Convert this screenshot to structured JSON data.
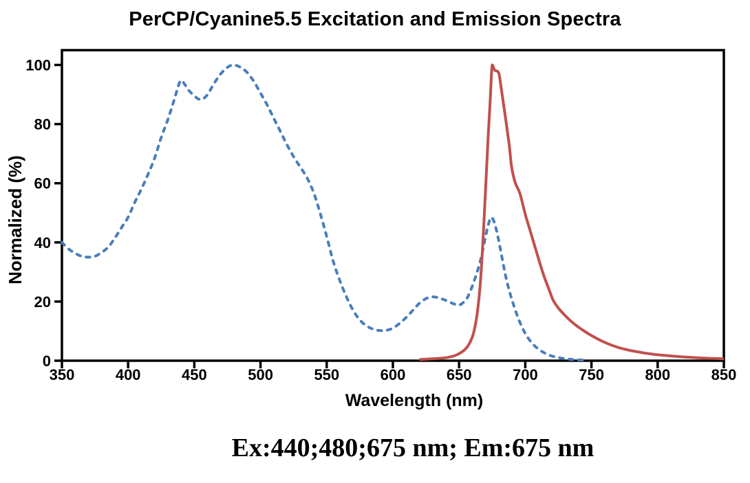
{
  "title": "PerCP/Cyanine5.5 Excitation and Emission Spectra",
  "caption": "Ex:440;480;675 nm; Em:675 nm",
  "chart_data": {
    "type": "line",
    "title": "PerCP/Cyanine5.5 Excitation and Emission Spectra",
    "xlabel": "Wavelength (nm)",
    "ylabel": "Normalized (%)",
    "xlim": [
      350,
      850
    ],
    "ylim": [
      0,
      105
    ],
    "xticks": [
      350,
      400,
      450,
      500,
      550,
      600,
      650,
      700,
      750,
      800,
      850
    ],
    "yticks": [
      0,
      20,
      40,
      60,
      80,
      100
    ],
    "grid": false,
    "legend": "none",
    "axis_color": "#000000",
    "series": [
      {
        "name": "Excitation",
        "style": "dashed",
        "color": "#4a7ebb",
        "points": [
          [
            350,
            40
          ],
          [
            355,
            37.8
          ],
          [
            360,
            36.3
          ],
          [
            365,
            35.3
          ],
          [
            370,
            35
          ],
          [
            375,
            35.3
          ],
          [
            380,
            36.6
          ],
          [
            385,
            38.4
          ],
          [
            390,
            41.5
          ],
          [
            395,
            45
          ],
          [
            400,
            48.5
          ],
          [
            405,
            53.5
          ],
          [
            410,
            58
          ],
          [
            415,
            63
          ],
          [
            420,
            68.5
          ],
          [
            425,
            75.5
          ],
          [
            430,
            81.5
          ],
          [
            435,
            88.5
          ],
          [
            438,
            93
          ],
          [
            440,
            94.8
          ],
          [
            443,
            93.3
          ],
          [
            446,
            91.3
          ],
          [
            450,
            89.6
          ],
          [
            453,
            88.5
          ],
          [
            456,
            88.4
          ],
          [
            460,
            90
          ],
          [
            465,
            93.8
          ],
          [
            470,
            97
          ],
          [
            475,
            99.2
          ],
          [
            478,
            99.9
          ],
          [
            480,
            100
          ],
          [
            485,
            99.2
          ],
          [
            490,
            97.4
          ],
          [
            495,
            94.4
          ],
          [
            500,
            90.5
          ],
          [
            505,
            86.5
          ],
          [
            510,
            82
          ],
          [
            515,
            77.5
          ],
          [
            520,
            73
          ],
          [
            525,
            69
          ],
          [
            530,
            65.5
          ],
          [
            535,
            62
          ],
          [
            540,
            57
          ],
          [
            545,
            50
          ],
          [
            550,
            42
          ],
          [
            555,
            33.5
          ],
          [
            560,
            27
          ],
          [
            565,
            21.5
          ],
          [
            570,
            17
          ],
          [
            575,
            13.8
          ],
          [
            580,
            11.8
          ],
          [
            585,
            10.7
          ],
          [
            590,
            10.2
          ],
          [
            595,
            10.3
          ],
          [
            600,
            11
          ],
          [
            605,
            12.6
          ],
          [
            610,
            14.6
          ],
          [
            615,
            17
          ],
          [
            620,
            19.4
          ],
          [
            625,
            21
          ],
          [
            630,
            21.6
          ],
          [
            635,
            21.2
          ],
          [
            640,
            20.4
          ],
          [
            645,
            19.4
          ],
          [
            650,
            18.8
          ],
          [
            655,
            20.5
          ],
          [
            658,
            23
          ],
          [
            661,
            26.5
          ],
          [
            664,
            30.5
          ],
          [
            667,
            35.5
          ],
          [
            670,
            42
          ],
          [
            672,
            45.8
          ],
          [
            674,
            48.4
          ],
          [
            676,
            47.5
          ],
          [
            678,
            44.5
          ],
          [
            680,
            40.5
          ],
          [
            683,
            33.5
          ],
          [
            686,
            27
          ],
          [
            690,
            20.5
          ],
          [
            695,
            14
          ],
          [
            700,
            9.2
          ],
          [
            705,
            6
          ],
          [
            710,
            3.9
          ],
          [
            715,
            2.5
          ],
          [
            720,
            1.6
          ],
          [
            725,
            1.05
          ],
          [
            730,
            0.7
          ],
          [
            735,
            0.45
          ],
          [
            740,
            0.3
          ],
          [
            745,
            0.2
          ]
        ]
      },
      {
        "name": "Emission",
        "style": "solid",
        "color": "#c0504d",
        "points": [
          [
            620,
            0.4
          ],
          [
            628,
            0.6
          ],
          [
            635,
            0.8
          ],
          [
            641,
            1.1
          ],
          [
            646,
            1.6
          ],
          [
            650,
            2.4
          ],
          [
            654,
            3.6
          ],
          [
            657,
            5.2
          ],
          [
            660,
            8
          ],
          [
            662,
            11.5
          ],
          [
            664,
            17
          ],
          [
            666,
            26
          ],
          [
            668,
            40
          ],
          [
            670,
            58
          ],
          [
            672,
            76
          ],
          [
            673.5,
            88
          ],
          [
            675,
            100
          ],
          [
            677,
            98.2
          ],
          [
            680,
            97.2
          ],
          [
            682,
            91.5
          ],
          [
            684,
            85.5
          ],
          [
            686,
            79
          ],
          [
            688,
            72.5
          ],
          [
            689.5,
            66
          ],
          [
            691,
            62.5
          ],
          [
            693,
            59.5
          ],
          [
            696,
            56.5
          ],
          [
            700,
            49.5
          ],
          [
            703,
            45
          ],
          [
            706,
            40.5
          ],
          [
            709,
            36
          ],
          [
            712,
            31.5
          ],
          [
            715,
            27.5
          ],
          [
            718,
            24
          ],
          [
            721,
            20.5
          ],
          [
            725,
            17.8
          ],
          [
            730,
            15.3
          ],
          [
            735,
            13.2
          ],
          [
            740,
            11.4
          ],
          [
            745,
            9.9
          ],
          [
            750,
            8.5
          ],
          [
            755,
            7.3
          ],
          [
            760,
            6.2
          ],
          [
            765,
            5.3
          ],
          [
            770,
            4.5
          ],
          [
            775,
            3.9
          ],
          [
            780,
            3.4
          ],
          [
            785,
            3
          ],
          [
            790,
            2.6
          ],
          [
            795,
            2.3
          ],
          [
            800,
            2
          ],
          [
            808,
            1.7
          ],
          [
            816,
            1.4
          ],
          [
            824,
            1.15
          ],
          [
            832,
            0.95
          ],
          [
            840,
            0.8
          ],
          [
            845,
            0.72
          ],
          [
            850,
            0.65
          ]
        ]
      }
    ]
  }
}
